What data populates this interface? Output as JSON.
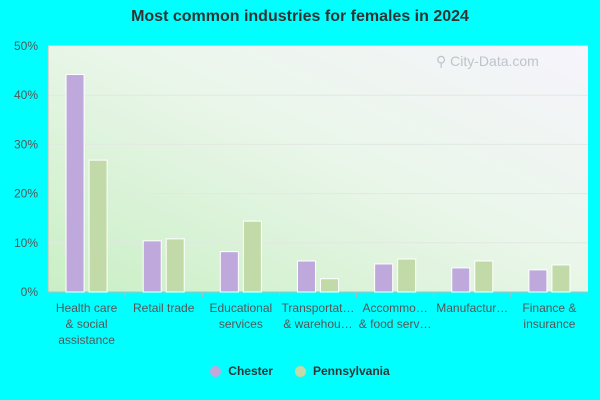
{
  "chart_data": {
    "type": "bar",
    "title": "Most common industries for females in 2024",
    "categories": [
      [
        "Health care",
        "& social",
        "assistance"
      ],
      [
        "Retail trade"
      ],
      [
        "Educational",
        "services"
      ],
      [
        "Transportat…",
        "& warehou…"
      ],
      [
        "Accommo…",
        "& food serv…"
      ],
      [
        "Manufactur…"
      ],
      [
        "Finance &",
        "insurance"
      ]
    ],
    "series": [
      {
        "name": "Chester",
        "color": "#bfa8dc",
        "values": [
          44.2,
          10.4,
          8.2,
          6.3,
          5.7,
          4.9,
          4.5
        ]
      },
      {
        "name": "Pennsylvania",
        "color": "#c2d9a8",
        "values": [
          26.8,
          10.8,
          14.4,
          2.7,
          6.7,
          6.3,
          5.5
        ]
      }
    ],
    "yticks": [
      "0%",
      "10%",
      "20%",
      "30%",
      "40%",
      "50%"
    ],
    "ylim": [
      0,
      50
    ],
    "grid": true,
    "legend_position": "bottom"
  },
  "watermark": "City-Data.com"
}
